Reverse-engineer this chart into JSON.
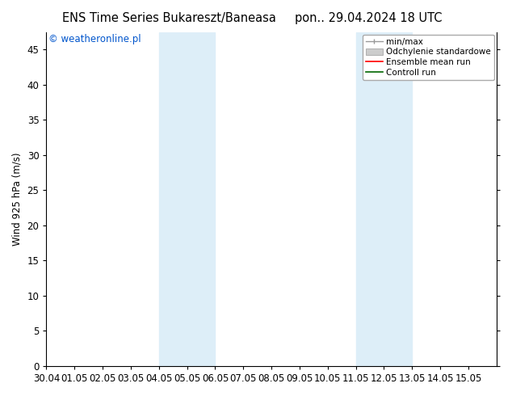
{
  "title_left": "ENS Time Series Bukareszt/Baneasa",
  "title_right": "pon.. 29.04.2024 18 UTC",
  "ylabel": "Wind 925 hPa (m/s)",
  "watermark": "© weatheronline.pl",
  "xlim_start": 0,
  "xlim_end": 16,
  "ylim": [
    0,
    47.5
  ],
  "yticks": [
    0,
    5,
    10,
    15,
    20,
    25,
    30,
    35,
    40,
    45
  ],
  "xtick_labels": [
    "30.04",
    "01.05",
    "02.05",
    "03.05",
    "04.05",
    "05.05",
    "06.05",
    "07.05",
    "08.05",
    "09.05",
    "10.05",
    "11.05",
    "12.05",
    "13.05",
    "14.05",
    "15.05"
  ],
  "shaded_bands": [
    {
      "x_start": 4.0,
      "x_end": 6.0
    },
    {
      "x_start": 11.0,
      "x_end": 13.0
    }
  ],
  "band_color": "#ddeef8",
  "grid_color": "#cccccc",
  "legend_items": [
    {
      "label": "min/max"
    },
    {
      "label": "Odchylenie standardowe"
    },
    {
      "label": "Ensemble mean run"
    },
    {
      "label": "Controll run"
    }
  ],
  "title_fontsize": 10.5,
  "axis_fontsize": 8.5,
  "watermark_fontsize": 8.5,
  "legend_fontsize": 7.5,
  "background_color": "#ffffff"
}
